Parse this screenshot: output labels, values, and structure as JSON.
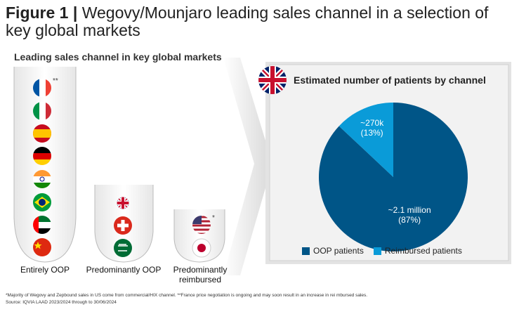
{
  "header": {
    "figure": "Figure 1 |",
    "title": "Wegovy/Mounjaro leading sales channel in a selection of key global markets"
  },
  "markets": {
    "title": "Leading sales channel in key global markets",
    "groups": [
      {
        "label": "Entirely OOP",
        "note": "**"
      },
      {
        "label": "Predominantly OOP"
      },
      {
        "label": "Predominantly reimbursed",
        "note": "*"
      }
    ]
  },
  "chart_data": {
    "type": "pie",
    "title": "Estimated number of patients by channel",
    "categories": [
      "OOP patients",
      "Reimbursed patients"
    ],
    "values": [
      87,
      13
    ],
    "value_labels": [
      "~2.1 million (87%)",
      "~270k (13%)"
    ],
    "colors": [
      "#005587",
      "#0a9bd8"
    ],
    "legend": "bottom"
  },
  "footnotes": [
    "*Majority of Wegovy and Zepbound sales in US come from commercial/HIX channel. **France price negotiation is ongoing and may soon result in an increase in rei mbursed sales.",
    "Source: IQVIA LAAD 2023/2024 through to 30/06/2024"
  ]
}
